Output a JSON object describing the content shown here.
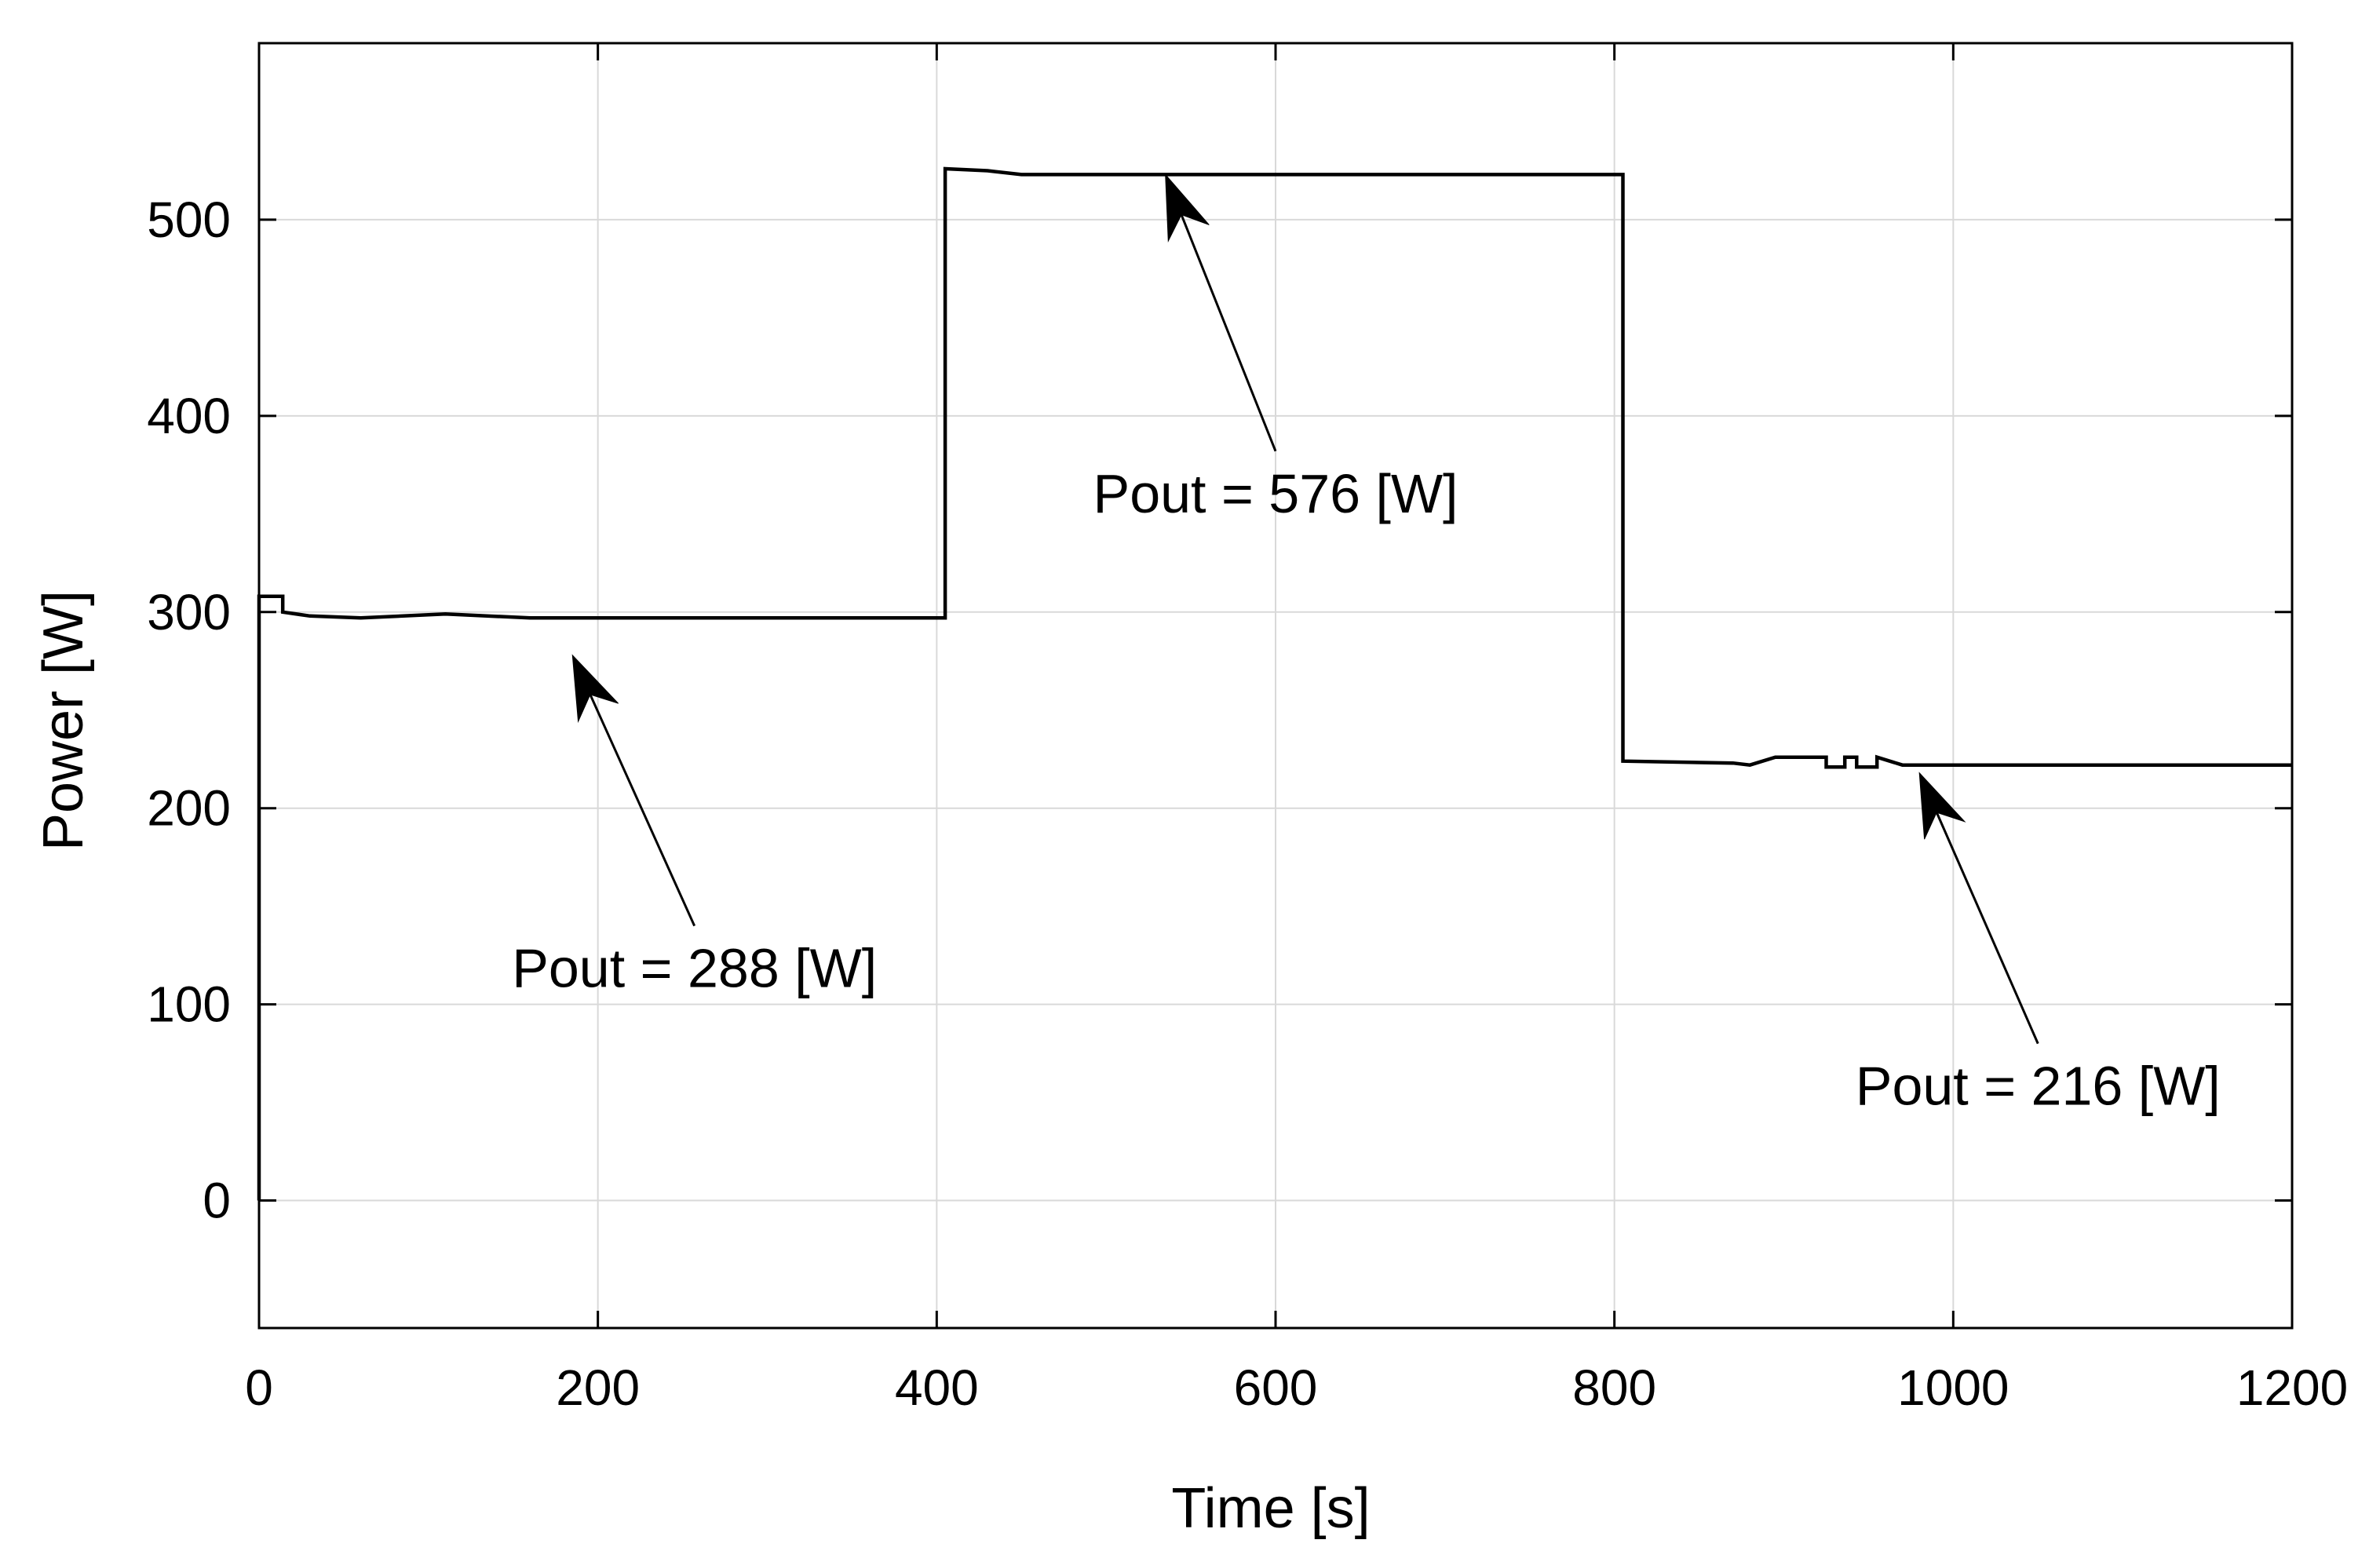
{
  "chart_data": {
    "type": "line",
    "title": "",
    "xlabel": "Time [s]",
    "ylabel": "Power [W]",
    "xlim": [
      0,
      1200
    ],
    "ylim": [
      -65,
      590
    ],
    "xticks": [
      0,
      200,
      400,
      600,
      800,
      1000,
      1200
    ],
    "xtick_labels": [
      "0",
      "200",
      "400",
      "600",
      "800",
      "1000",
      "1200"
    ],
    "yticks": [
      0,
      100,
      200,
      300,
      400,
      500
    ],
    "ytick_labels": [
      "0",
      "100",
      "200",
      "300",
      "400",
      "500"
    ],
    "grid": true,
    "legend": null,
    "series": [
      {
        "name": "Power",
        "color": "#000000",
        "x": [
          0,
          0,
          14,
          14,
          30,
          60,
          110,
          160,
          200,
          405,
          405,
          430,
          450,
          530,
          550,
          600,
          805,
          805,
          870,
          880,
          895,
          925,
          925,
          936,
          936,
          943,
          943,
          955,
          955,
          970,
          1000,
          1200
        ],
        "y": [
          0,
          308,
          308,
          300,
          298,
          297,
          299,
          297,
          297,
          297,
          526,
          525,
          523,
          523,
          523,
          523,
          523,
          224,
          223,
          222,
          226,
          226,
          221,
          221,
          226,
          226,
          221,
          221,
          226,
          222,
          222,
          222
        ]
      }
    ],
    "annotations": [
      {
        "text": "Pout = 288 [W]",
        "target": [
          185,
          278
        ],
        "text_pos": [
          257,
          140
        ]
      },
      {
        "text": "Pout = 576 [W]",
        "target": [
          535,
          523
        ],
        "text_pos": [
          600,
          382
        ]
      },
      {
        "text": "Pout = 216 [W]",
        "target": [
          980,
          218
        ],
        "text_pos": [
          1050,
          80
        ]
      }
    ]
  }
}
